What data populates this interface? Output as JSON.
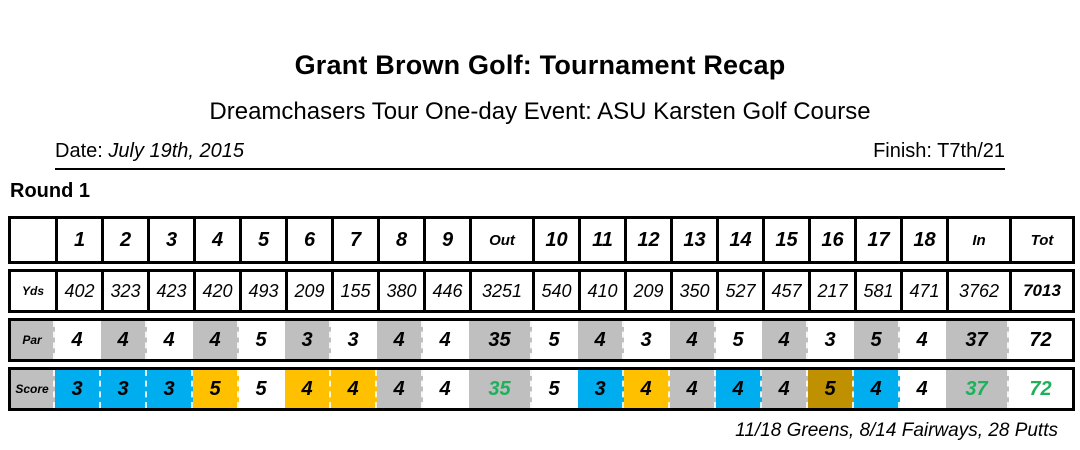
{
  "colors": {
    "birdie_blue": "#00AEEF",
    "bogey_gold": "#FFC000",
    "double_bogey_dark_gold": "#BF9000",
    "band_gray": "#BFBFBF",
    "total_green": "#1FB05C",
    "white": "#FFFFFF"
  },
  "header": {
    "title": "Grant Brown Golf: Tournament Recap",
    "subtitle": "Dreamchasers Tour One-day Event: ASU Karsten Golf Course",
    "date_label": "Date:",
    "date_value": "July 19th, 2015",
    "finish_label": "Finish:",
    "finish_value": "T7th/21"
  },
  "round_label": "Round 1",
  "scorecard": {
    "header_cells": [
      "",
      "1",
      "2",
      "3",
      "4",
      "5",
      "6",
      "7",
      "8",
      "9",
      "Out",
      "10",
      "11",
      "12",
      "13",
      "14",
      "15",
      "16",
      "17",
      "18",
      "In",
      "Tot"
    ],
    "rows": [
      {
        "label": "Yds",
        "label_bg": "white",
        "style": "boxed",
        "cells": [
          {
            "v": "402"
          },
          {
            "v": "323"
          },
          {
            "v": "423"
          },
          {
            "v": "420"
          },
          {
            "v": "493"
          },
          {
            "v": "209"
          },
          {
            "v": "155"
          },
          {
            "v": "380"
          },
          {
            "v": "446"
          },
          {
            "v": "3251"
          },
          {
            "v": "540"
          },
          {
            "v": "410"
          },
          {
            "v": "209"
          },
          {
            "v": "350"
          },
          {
            "v": "527"
          },
          {
            "v": "457"
          },
          {
            "v": "217"
          },
          {
            "v": "581"
          },
          {
            "v": "471"
          },
          {
            "v": "3762"
          },
          {
            "v": "7013",
            "bold": true
          }
        ]
      },
      {
        "label": "Par",
        "label_bg": "gray",
        "style": "band",
        "cells": [
          {
            "v": "4",
            "bg": "white"
          },
          {
            "v": "4",
            "bg": "gray"
          },
          {
            "v": "4",
            "bg": "white"
          },
          {
            "v": "4",
            "bg": "gray"
          },
          {
            "v": "5",
            "bg": "white"
          },
          {
            "v": "3",
            "bg": "gray"
          },
          {
            "v": "3",
            "bg": "white"
          },
          {
            "v": "4",
            "bg": "gray"
          },
          {
            "v": "4",
            "bg": "white"
          },
          {
            "v": "35",
            "bg": "gray"
          },
          {
            "v": "5",
            "bg": "white"
          },
          {
            "v": "4",
            "bg": "gray"
          },
          {
            "v": "3",
            "bg": "white"
          },
          {
            "v": "4",
            "bg": "gray"
          },
          {
            "v": "5",
            "bg": "white"
          },
          {
            "v": "4",
            "bg": "gray"
          },
          {
            "v": "3",
            "bg": "white"
          },
          {
            "v": "5",
            "bg": "gray"
          },
          {
            "v": "4",
            "bg": "white"
          },
          {
            "v": "37",
            "bg": "gray"
          },
          {
            "v": "72",
            "bg": "white"
          }
        ]
      },
      {
        "label": "Score",
        "label_bg": "gray",
        "style": "band",
        "cells": [
          {
            "v": "3",
            "bg": "birdie"
          },
          {
            "v": "3",
            "bg": "birdie"
          },
          {
            "v": "3",
            "bg": "birdie"
          },
          {
            "v": "5",
            "bg": "bogey"
          },
          {
            "v": "5",
            "bg": "white"
          },
          {
            "v": "4",
            "bg": "bogey"
          },
          {
            "v": "4",
            "bg": "bogey"
          },
          {
            "v": "4",
            "bg": "gray"
          },
          {
            "v": "4",
            "bg": "white"
          },
          {
            "v": "35",
            "bg": "gray",
            "fg": "green"
          },
          {
            "v": "5",
            "bg": "white"
          },
          {
            "v": "3",
            "bg": "birdie"
          },
          {
            "v": "4",
            "bg": "bogey"
          },
          {
            "v": "4",
            "bg": "gray"
          },
          {
            "v": "4",
            "bg": "birdie"
          },
          {
            "v": "4",
            "bg": "gray"
          },
          {
            "v": "5",
            "bg": "double"
          },
          {
            "v": "4",
            "bg": "birdie"
          },
          {
            "v": "4",
            "bg": "white"
          },
          {
            "v": "37",
            "bg": "gray",
            "fg": "green"
          },
          {
            "v": "72",
            "bg": "white",
            "fg": "green"
          }
        ]
      }
    ]
  },
  "footer": {
    "stats": "11/18 Greens, 8/14 Fairways, 28 Putts"
  }
}
